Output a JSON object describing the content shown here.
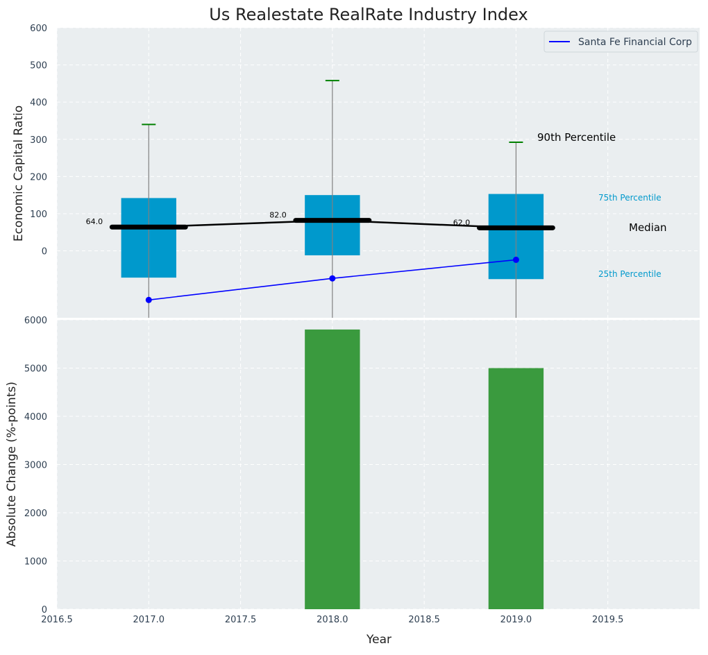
{
  "chart_data": [
    {
      "type": "box",
      "title": "Us Realestate RealRate Industry Index",
      "ylabel": "Economic Capital Ratio",
      "xlim": [
        2016.5,
        2020.0
      ],
      "ylim": [
        -180,
        600
      ],
      "yticks": [
        0,
        100,
        200,
        300,
        400,
        500,
        600
      ],
      "grid": true,
      "legend_position": "top-right",
      "colors": {
        "background": "#eaeef0",
        "box": "#0099cc",
        "whisker": "#808080",
        "cap": "#008000",
        "median": "#000000",
        "company_line": "#0000ff",
        "annotation": "#0099cc"
      },
      "boxes": [
        {
          "x": 2017.0,
          "q1": -72,
          "q3": 142,
          "median": 64.0,
          "whisker_low": -180,
          "whisker_high": 340,
          "median_label": "64.0"
        },
        {
          "x": 2018.0,
          "q1": -12,
          "q3": 150,
          "median": 82.0,
          "whisker_low": -180,
          "whisker_high": 458,
          "median_label": "82.0"
        },
        {
          "x": 2019.0,
          "q1": -76,
          "q3": 153,
          "median": 62.0,
          "whisker_low": -180,
          "whisker_high": 292,
          "median_label": "62.0"
        }
      ],
      "median_line": {
        "x": [
          2017.0,
          2018.0,
          2019.0
        ],
        "y": [
          64.0,
          82.0,
          62.0
        ]
      },
      "series": [
        {
          "name": "Santa Fe Financial Corp",
          "x": [
            2017.0,
            2018.0,
            2019.0
          ],
          "y": [
            -132,
            -74,
            -24
          ]
        }
      ],
      "annotations": {
        "p90": "90th Percentile",
        "p75": "75th Percentile",
        "median": "Median",
        "p25": "25th Percentile"
      }
    },
    {
      "type": "bar",
      "xlabel": "Year",
      "ylabel": "Absolute Change (%-points)",
      "xlim": [
        2016.5,
        2020.0
      ],
      "ylim": [
        0,
        6000
      ],
      "xticks": [
        2016.5,
        2017.0,
        2017.5,
        2018.0,
        2018.5,
        2019.0,
        2019.5
      ],
      "yticks": [
        0,
        1000,
        2000,
        3000,
        4000,
        5000,
        6000
      ],
      "grid": true,
      "colors": {
        "bar": "#3a9a3e",
        "background": "#eaeef0"
      },
      "x": [
        2018.0,
        2019.0
      ],
      "values": [
        5800,
        5000
      ],
      "bar_width": 0.3
    }
  ]
}
